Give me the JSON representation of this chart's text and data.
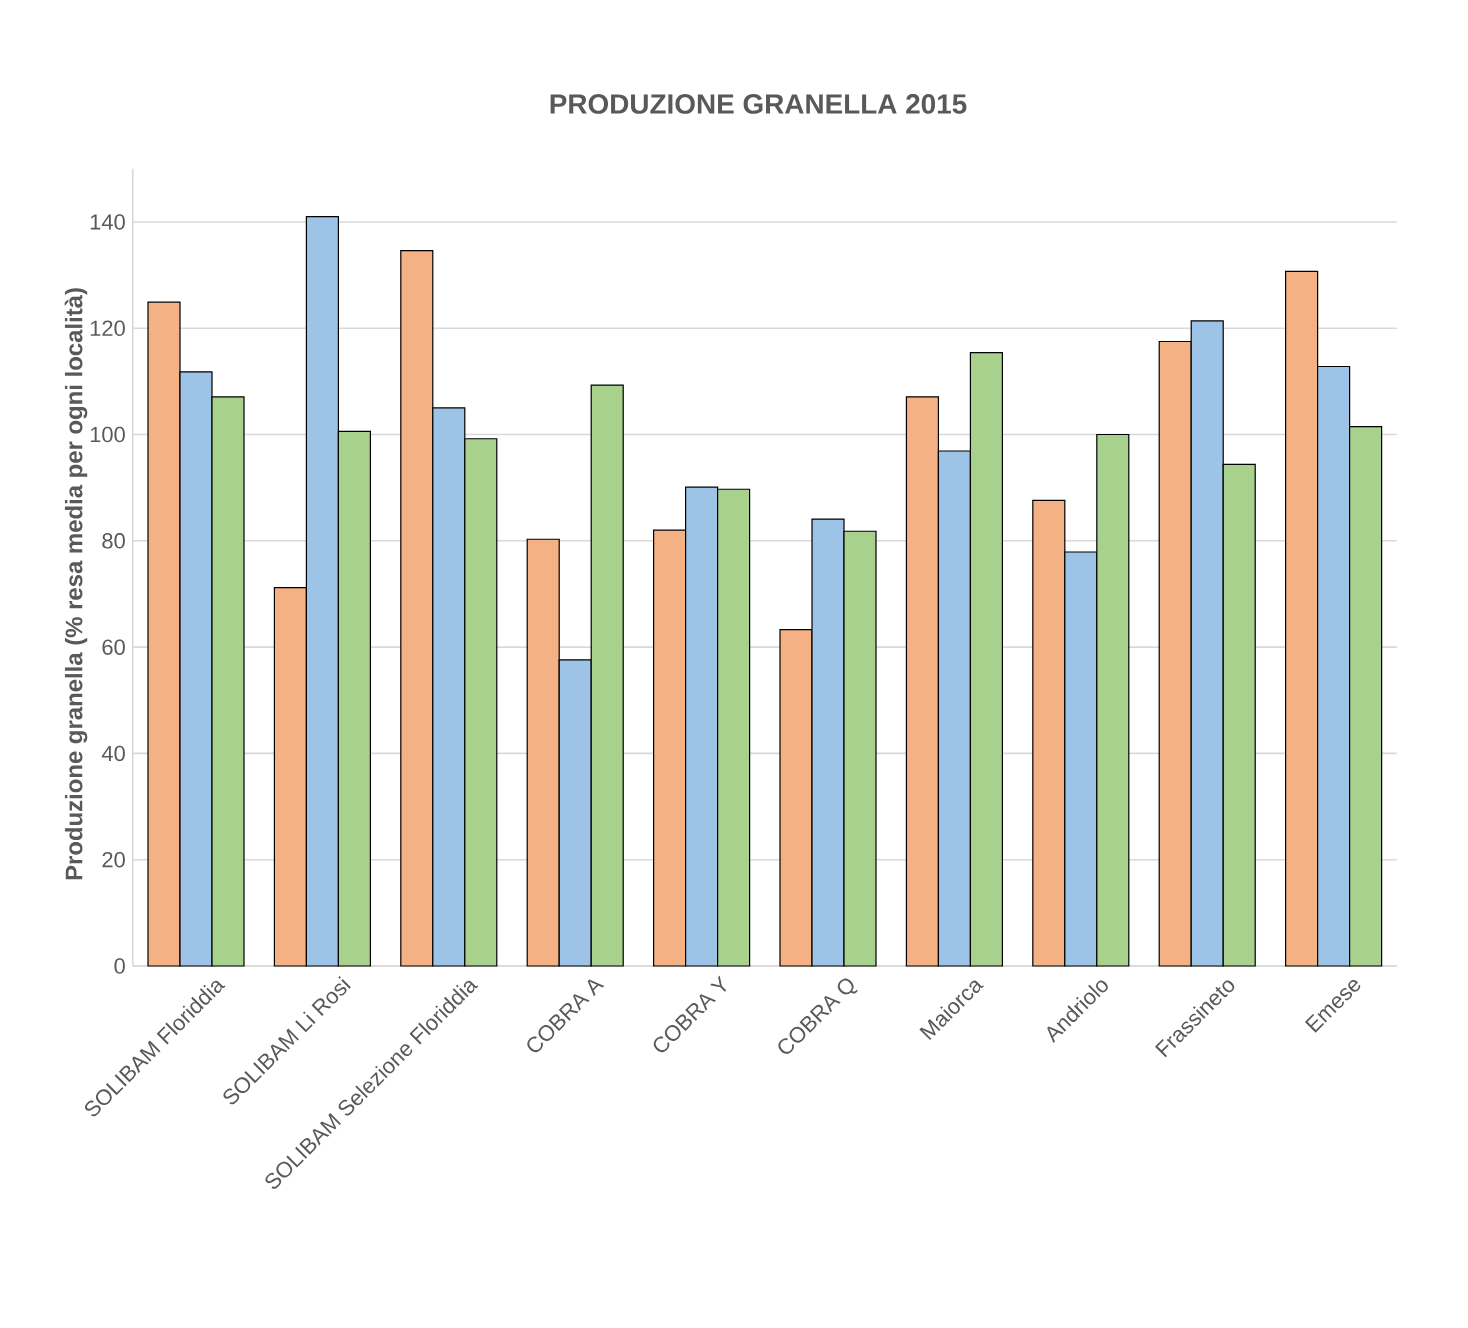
{
  "chart_data": {
    "type": "bar",
    "title": "PRODUZIONE GRANELLA 2015",
    "ylabel": "Produzione granella (% resa media per ogni località)",
    "categories": [
      "SOLIBAM Floriddia",
      "SOLIBAM Li Rosi",
      "SOLIBAM Selezione Floriddia",
      "COBRA A",
      "COBRA Y",
      "COBRA Q",
      "Maiorca",
      "Andriolo",
      "Frassineto",
      "Emese"
    ],
    "series": [
      {
        "color": "#f4b183",
        "values": [
          124.9,
          71.2,
          134.6,
          80.3,
          82.0,
          63.3,
          107.1,
          87.6,
          117.5,
          130.7
        ]
      },
      {
        "color": "#9dc3e6",
        "values": [
          111.8,
          141.0,
          105.0,
          57.6,
          90.1,
          84.1,
          96.9,
          77.9,
          121.4,
          112.8
        ]
      },
      {
        "color": "#a9d18e",
        "values": [
          107.1,
          100.6,
          99.2,
          109.3,
          89.7,
          81.8,
          115.4,
          100.0,
          94.4,
          101.5
        ]
      }
    ],
    "ylim": [
      0,
      150
    ],
    "yticks": [
      0,
      20,
      40,
      60,
      80,
      100,
      120,
      140
    ],
    "grid": "y"
  }
}
